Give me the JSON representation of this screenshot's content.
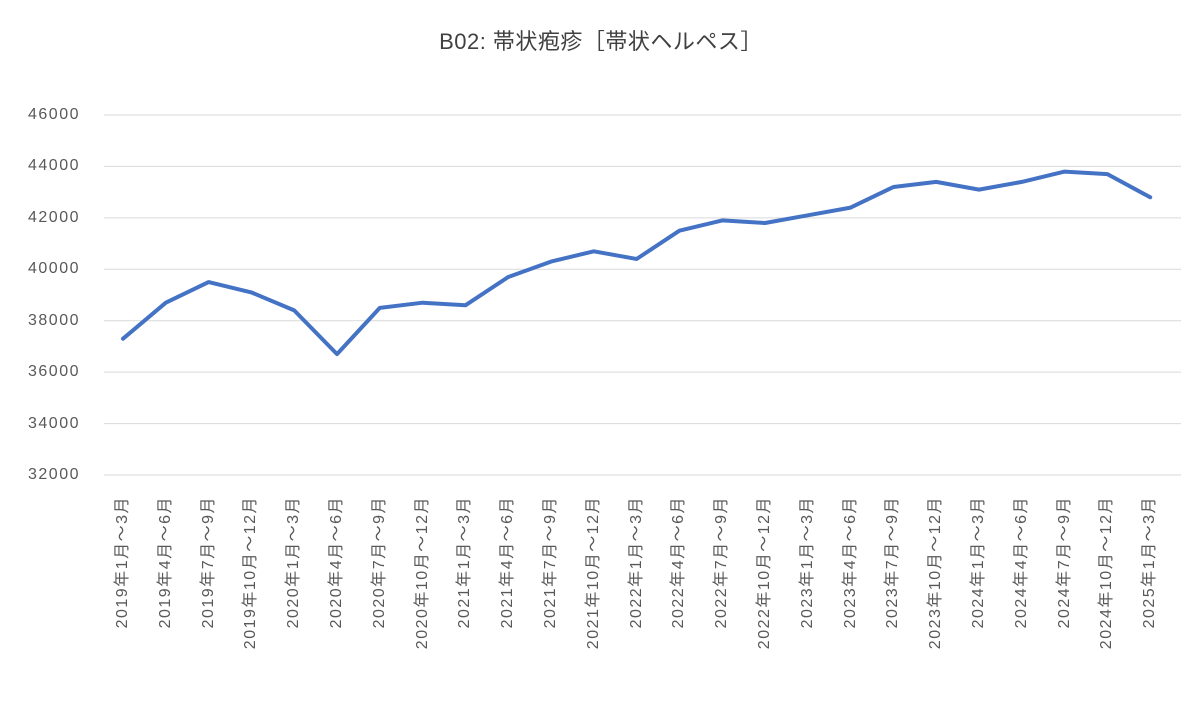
{
  "chart_data": {
    "type": "line",
    "title": "B02: 帯状疱疹［帯状ヘルペス］",
    "categories": [
      "2019年1月～3月",
      "2019年4月～6月",
      "2019年7月～9月",
      "2019年10月～12月",
      "2020年1月～3月",
      "2020年4月～6月",
      "2020年7月～9月",
      "2020年10月～12月",
      "2021年1月～3月",
      "2021年4月～6月",
      "2021年7月～9月",
      "2021年10月～12月",
      "2022年1月～3月",
      "2022年4月～6月",
      "2022年7月～9月",
      "2022年10月～12月",
      "2023年1月～3月",
      "2023年4月～6月",
      "2023年7月～9月",
      "2023年10月～12月",
      "2024年1月～3月",
      "2024年4月～6月",
      "2024年7月～9月",
      "2024年10月～12月",
      "2025年1月～3月"
    ],
    "values": [
      37300,
      38700,
      39500,
      39100,
      38400,
      36700,
      38500,
      38700,
      38600,
      39700,
      40300,
      40700,
      40400,
      41500,
      41900,
      41800,
      42100,
      42400,
      43200,
      43400,
      43100,
      43400,
      43800,
      43700,
      42800
    ],
    "xlabel": "",
    "ylabel": "",
    "ylim": [
      32000,
      46000
    ],
    "yticks": [
      46000,
      44000,
      42000,
      40000,
      38000,
      36000,
      34000,
      32000
    ],
    "grid": "horizontal",
    "legend": "none",
    "line_color": "#4472C4",
    "gridline_color": "#D9D9D9",
    "axis_label_color": "#595959",
    "title_color": "#404040",
    "background": "#FFFFFF"
  }
}
